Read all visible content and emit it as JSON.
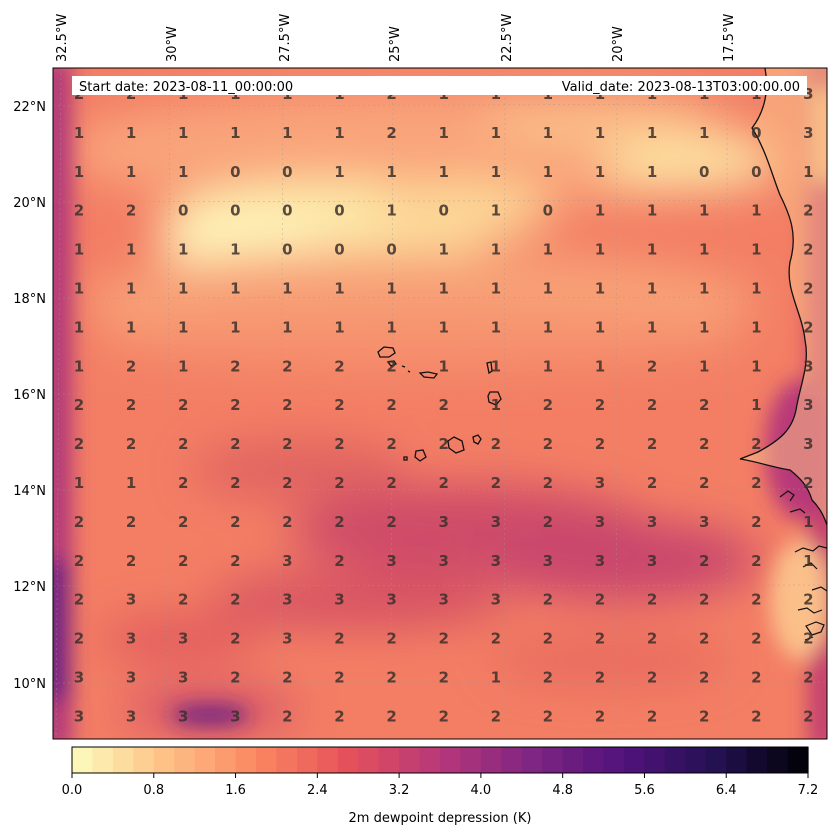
{
  "header": {
    "start_date": "Start date: 2023-08-11_00:00:00",
    "valid_date": "Valid_date: 2023-08-13T03:00:00.00"
  },
  "axes": {
    "lon_labels": [
      "32.5°W",
      "30°W",
      "27.5°W",
      "25°W",
      "22.5°W",
      "20°W",
      "17.5°W"
    ],
    "lat_labels": [
      "22°N",
      "20°N",
      "18°N",
      "16°N",
      "14°N",
      "12°N",
      "10°N"
    ]
  },
  "colorbar": {
    "label": "2m dewpoint depression (K)",
    "ticks": [
      "0.0",
      "0.8",
      "1.6",
      "2.4",
      "3.2",
      "4.0",
      "4.8",
      "5.6",
      "6.4",
      "7.2"
    ],
    "vmin": 0.0,
    "vmax": 7.2,
    "colormap": "magma_r",
    "colors": [
      "#fcfdbf",
      "#fec287",
      "#fb8761",
      "#e5515a",
      "#b73779",
      "#7f2582",
      "#51127c",
      "#231151",
      "#000004"
    ]
  },
  "grid_values": [
    [
      2,
      2,
      1,
      1,
      1,
      1,
      2,
      1,
      1,
      1,
      1,
      1,
      1,
      1,
      3
    ],
    [
      1,
      1,
      1,
      1,
      1,
      1,
      2,
      1,
      1,
      1,
      1,
      1,
      1,
      0,
      3
    ],
    [
      1,
      1,
      1,
      0,
      0,
      1,
      1,
      1,
      1,
      1,
      1,
      1,
      0,
      0,
      1
    ],
    [
      2,
      2,
      0,
      0,
      0,
      0,
      1,
      0,
      1,
      0,
      1,
      1,
      1,
      1,
      2
    ],
    [
      1,
      1,
      1,
      1,
      0,
      0,
      0,
      1,
      1,
      1,
      1,
      1,
      1,
      1,
      2
    ],
    [
      1,
      1,
      1,
      1,
      1,
      1,
      1,
      1,
      1,
      1,
      1,
      1,
      1,
      1,
      2
    ],
    [
      1,
      1,
      1,
      1,
      1,
      1,
      1,
      1,
      1,
      1,
      1,
      1,
      1,
      1,
      2
    ],
    [
      1,
      2,
      1,
      2,
      2,
      2,
      2,
      1,
      1,
      1,
      1,
      2,
      1,
      1,
      3
    ],
    [
      2,
      2,
      2,
      2,
      2,
      2,
      2,
      2,
      1,
      2,
      2,
      2,
      2,
      1,
      3
    ],
    [
      2,
      2,
      2,
      2,
      2,
      2,
      2,
      2,
      2,
      2,
      2,
      2,
      2,
      2,
      3
    ],
    [
      1,
      1,
      2,
      2,
      2,
      2,
      2,
      2,
      2,
      2,
      3,
      2,
      2,
      2,
      2
    ],
    [
      2,
      2,
      2,
      2,
      2,
      2,
      2,
      3,
      3,
      2,
      3,
      3,
      3,
      2,
      1
    ],
    [
      2,
      2,
      2,
      2,
      3,
      2,
      3,
      3,
      3,
      3,
      3,
      3,
      2,
      2,
      1
    ],
    [
      2,
      3,
      2,
      2,
      3,
      3,
      3,
      3,
      3,
      2,
      2,
      2,
      2,
      2,
      2
    ],
    [
      2,
      3,
      3,
      2,
      3,
      2,
      2,
      2,
      2,
      2,
      2,
      2,
      2,
      2,
      2
    ],
    [
      3,
      3,
      3,
      2,
      2,
      2,
      2,
      2,
      1,
      2,
      2,
      2,
      2,
      2,
      2
    ],
    [
      3,
      3,
      3,
      3,
      2,
      2,
      2,
      2,
      2,
      2,
      2,
      2,
      2,
      2,
      2
    ]
  ]
}
